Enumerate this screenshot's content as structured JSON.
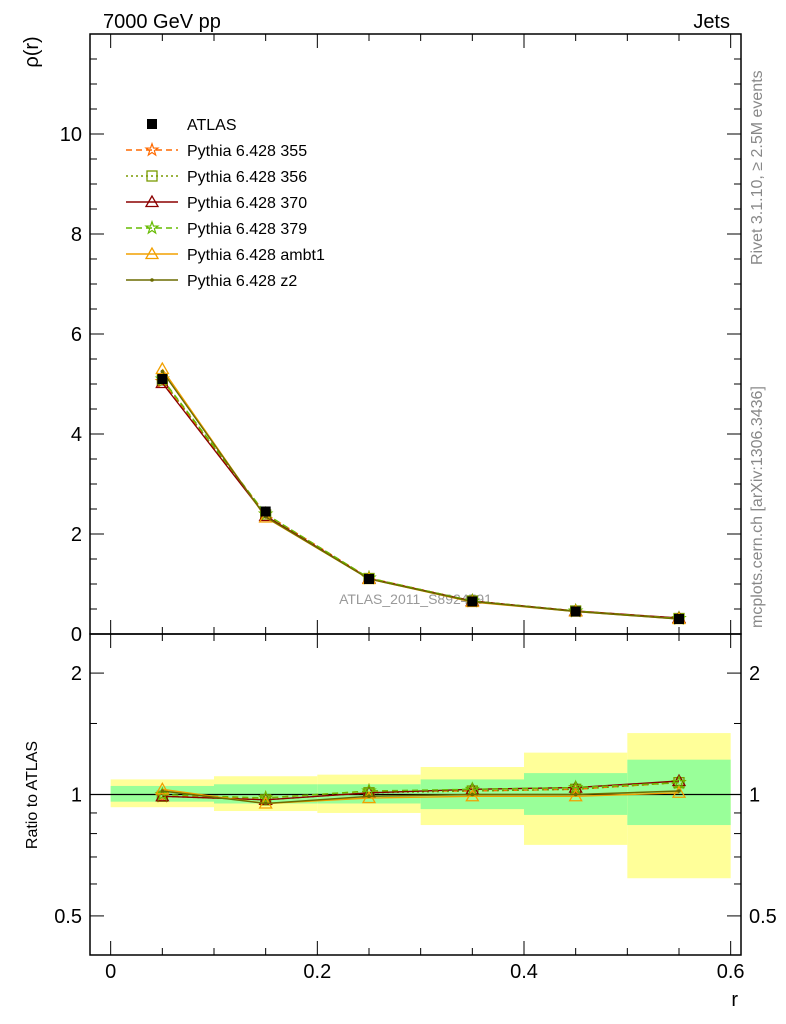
{
  "header": {
    "left": "7000 GeV pp",
    "right": "Jets"
  },
  "side_texts": {
    "rivet": "Rivet 3.1.10, ≥ 2.5M events",
    "mcplots": "mcplots.cern.ch [arXiv:1306.3436]"
  },
  "watermark": "ATLAS_2011_S8924791",
  "chart_data": [
    {
      "panel": "main",
      "type": "line",
      "ylabel": "ρ(r)",
      "xlim": [
        -0.02,
        0.61
      ],
      "ylim": [
        0,
        12
      ],
      "y_ticks": [
        "0",
        "2",
        "4",
        "6",
        "8",
        "10"
      ],
      "x": [
        0.05,
        0.15,
        0.25,
        0.35,
        0.45,
        0.55
      ],
      "series": [
        {
          "name": "ATLAS",
          "values": [
            5.1,
            2.45,
            1.1,
            0.65,
            0.45,
            0.3
          ],
          "color": "#000000",
          "marker": "filled-square",
          "line": "none"
        },
        {
          "name": "Pythia 6.428 355",
          "values": [
            5.05,
            2.4,
            1.12,
            0.66,
            0.46,
            0.31
          ],
          "color": "#ff6a00",
          "marker": "star",
          "line": "dashed"
        },
        {
          "name": "Pythia 6.428 356",
          "values": [
            5.08,
            2.38,
            1.11,
            0.66,
            0.46,
            0.31
          ],
          "color": "#7a9a00",
          "marker": "open-square",
          "line": "dotted"
        },
        {
          "name": "Pythia 6.428 370",
          "values": [
            5.02,
            2.36,
            1.11,
            0.66,
            0.46,
            0.32
          ],
          "color": "#8b0000",
          "marker": "open-triangle",
          "line": "solid"
        },
        {
          "name": "Pythia 6.428 379",
          "values": [
            5.1,
            2.4,
            1.12,
            0.66,
            0.46,
            0.31
          ],
          "color": "#66bb00",
          "marker": "star",
          "line": "dashed"
        },
        {
          "name": "Pythia 6.428 ambt1",
          "values": [
            5.3,
            2.33,
            1.1,
            0.64,
            0.45,
            0.3
          ],
          "color": "#f2a000",
          "marker": "open-triangle",
          "line": "solid"
        },
        {
          "name": "Pythia 6.428 z2",
          "values": [
            5.25,
            2.34,
            1.1,
            0.65,
            0.45,
            0.3
          ],
          "color": "#6b6b00",
          "marker": "dot",
          "line": "solid"
        }
      ]
    },
    {
      "panel": "ratio",
      "type": "line",
      "xlabel": "r",
      "ylabel": "Ratio to ATLAS",
      "xlim": [
        -0.02,
        0.61
      ],
      "ylim": [
        0.4,
        2.5
      ],
      "y_scale": "log",
      "x_ticks": [
        "0",
        "0.2",
        "0.4",
        "0.6"
      ],
      "y_ticks": [
        "0.5",
        "1",
        "2"
      ],
      "bins": [
        [
          0.0,
          0.1
        ],
        [
          0.1,
          0.2
        ],
        [
          0.2,
          0.3
        ],
        [
          0.3,
          0.4
        ],
        [
          0.4,
          0.5
        ],
        [
          0.5,
          0.6
        ]
      ],
      "band_inner": [
        [
          0.96,
          1.05
        ],
        [
          0.95,
          1.06
        ],
        [
          0.95,
          1.06
        ],
        [
          0.92,
          1.09
        ],
        [
          0.89,
          1.13
        ],
        [
          0.84,
          1.22
        ]
      ],
      "band_outer": [
        [
          0.93,
          1.09
        ],
        [
          0.91,
          1.11
        ],
        [
          0.9,
          1.12
        ],
        [
          0.84,
          1.17
        ],
        [
          0.75,
          1.27
        ],
        [
          0.62,
          1.42
        ]
      ],
      "band_colors": {
        "inner": "#99ff99",
        "outer": "#ffff99"
      },
      "x": [
        0.05,
        0.15,
        0.25,
        0.35,
        0.45,
        0.55
      ],
      "series": [
        {
          "name": "Pythia 6.428 355",
          "values": [
            0.99,
            0.98,
            1.02,
            1.02,
            1.03,
            1.07
          ],
          "color": "#ff6a00",
          "marker": "star",
          "line": "dashed"
        },
        {
          "name": "Pythia 6.428 356",
          "values": [
            0.99,
            0.97,
            1.01,
            1.02,
            1.03,
            1.07
          ],
          "color": "#7a9a00",
          "marker": "open-square",
          "line": "dotted"
        },
        {
          "name": "Pythia 6.428 370",
          "values": [
            0.99,
            0.97,
            1.01,
            1.03,
            1.04,
            1.08
          ],
          "color": "#8b0000",
          "marker": "open-triangle",
          "line": "solid"
        },
        {
          "name": "Pythia 6.428 379",
          "values": [
            1.0,
            0.98,
            1.02,
            1.03,
            1.04,
            1.07
          ],
          "color": "#66bb00",
          "marker": "star",
          "line": "dashed"
        },
        {
          "name": "Pythia 6.428 ambt1",
          "values": [
            1.03,
            0.95,
            0.98,
            0.99,
            0.99,
            1.01
          ],
          "color": "#f2a000",
          "marker": "open-triangle",
          "line": "solid"
        },
        {
          "name": "Pythia 6.428 z2",
          "values": [
            1.02,
            0.95,
            0.99,
            1.0,
            1.0,
            1.02
          ],
          "color": "#6b6b00",
          "marker": "dot",
          "line": "solid"
        }
      ]
    }
  ]
}
